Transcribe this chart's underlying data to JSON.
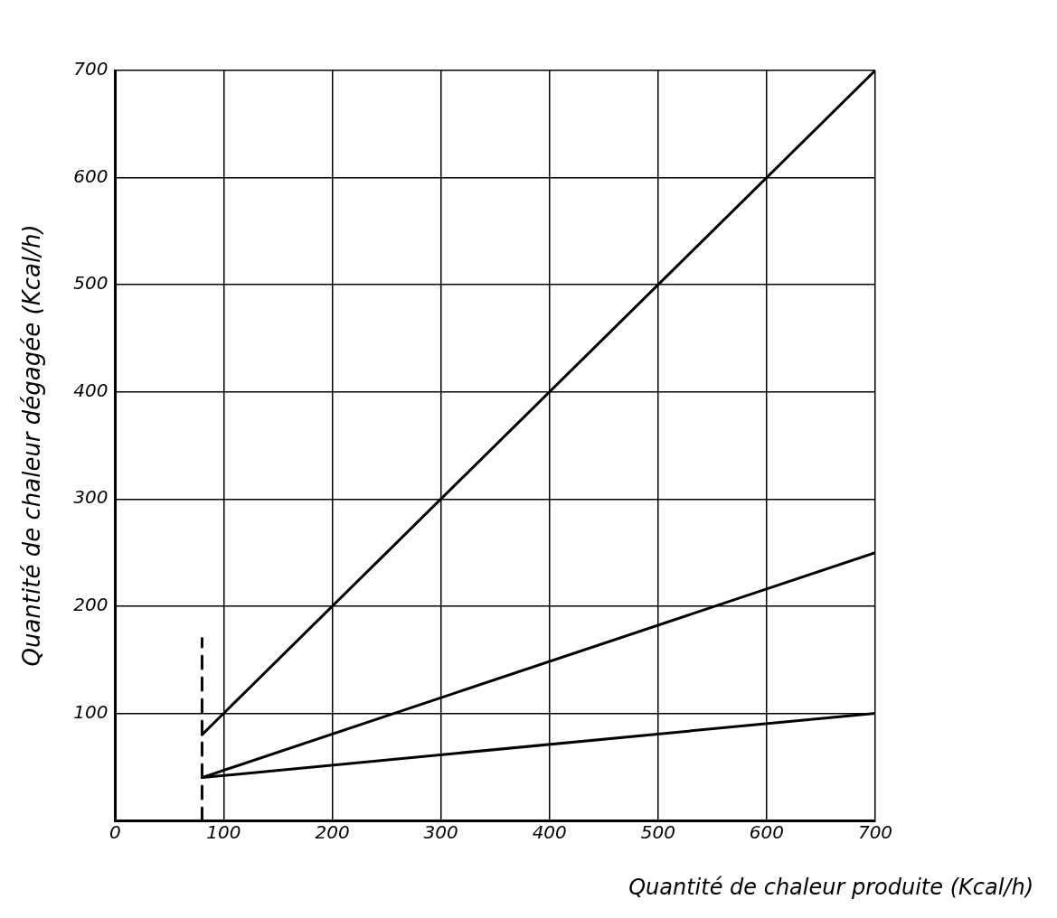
{
  "chart_data": {
    "type": "line",
    "xlabel": "Quantité de chaleur produite (Kcal/h)",
    "ylabel": "Quantité de chaleur dégagée (Kcal/h)",
    "xlim": [
      0,
      700
    ],
    "ylim": [
      0,
      700
    ],
    "xticks": [
      0,
      100,
      200,
      300,
      400,
      500,
      600,
      700
    ],
    "yticks": [
      {
        "value": 0,
        "label": null
      },
      100,
      200,
      300,
      400,
      500,
      600,
      700
    ],
    "grid": true,
    "legend": false,
    "marker": "none",
    "x": [
      80,
      700
    ],
    "series": [
      {
        "color": "#000000",
        "values": [
          80,
          700
        ]
      },
      {
        "color": "#000000",
        "values": [
          40,
          250
        ]
      },
      {
        "color": "#000000",
        "values": [
          40,
          100
        ]
      },
      {
        "color": "#000000",
        "x": [
          80,
          80
        ],
        "values": [
          0,
          170
        ],
        "line_style": "dashed"
      }
    ]
  }
}
